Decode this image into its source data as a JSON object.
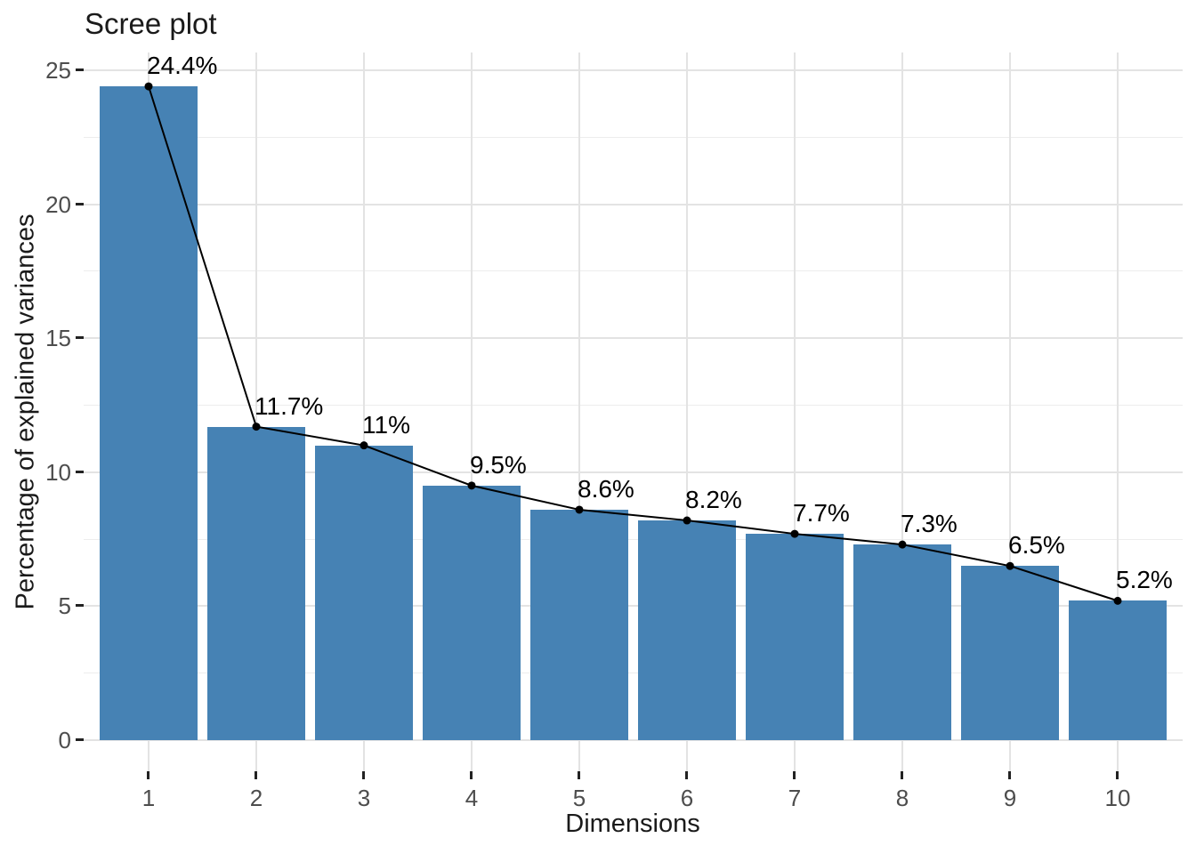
{
  "chart_data": {
    "type": "bar",
    "overlay": "line-with-points",
    "title": "Scree plot",
    "xlabel": "Dimensions",
    "ylabel": "Percentage of explained variances",
    "categories": [
      1,
      2,
      3,
      4,
      5,
      6,
      7,
      8,
      9,
      10
    ],
    "values": [
      24.4,
      11.7,
      11,
      9.5,
      8.6,
      8.2,
      7.7,
      7.3,
      6.5,
      5.2
    ],
    "point_labels": [
      "24.4%",
      "11.7%",
      "11%",
      "9.5%",
      "8.6%",
      "8.2%",
      "7.7%",
      "7.3%",
      "6.5%",
      "5.2%"
    ],
    "yticks": [
      0,
      5,
      10,
      15,
      20,
      25
    ],
    "y_minor_step": 2.5,
    "ylim": [
      0,
      25
    ],
    "grid": "on",
    "legend": "none",
    "colors": {
      "bar_fill": "#4682B4",
      "line_color": "#000000",
      "point_color": "#000000",
      "grid_major": "#E3E3E3",
      "grid_minor": "#EDEDED",
      "tick_mark": "#222222",
      "tick_text": "#4D4D4D",
      "text": "#1A1A1A",
      "background": "#FFFFFF"
    }
  }
}
